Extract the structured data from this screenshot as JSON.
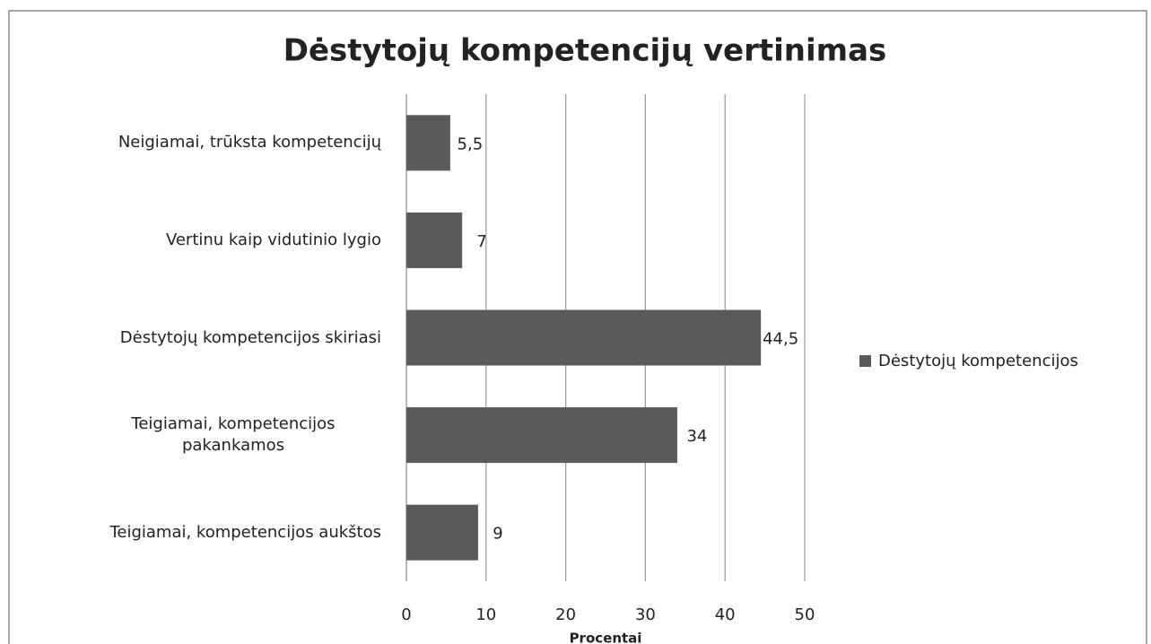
{
  "chart_data": {
    "type": "bar",
    "orientation": "horizontal",
    "title": "Dėstytojų kompetencijų vertinimas",
    "x_axis_label": "Procentai",
    "categories": [
      "Neigiamai, trūksta kompetencijų",
      "Vertinu kaip vidutinio lygio",
      "Dėstytojų kompetencijos skiriasi",
      "Teigiamai, kompetencijos pakankamos",
      "Teigiamai, kompetencijos aukštos"
    ],
    "series": [
      {
        "name": "Dėstytojų kompetencijos",
        "color": "#5a5a5a",
        "values": [
          5.5,
          7,
          44.5,
          34,
          9
        ],
        "value_labels": [
          "5,5",
          "7",
          "44,5",
          "34",
          "9"
        ]
      }
    ],
    "xlim": [
      0,
      50
    ],
    "xticks": [
      0,
      10,
      20,
      30,
      40,
      50
    ],
    "grid": true,
    "legend": "right"
  }
}
